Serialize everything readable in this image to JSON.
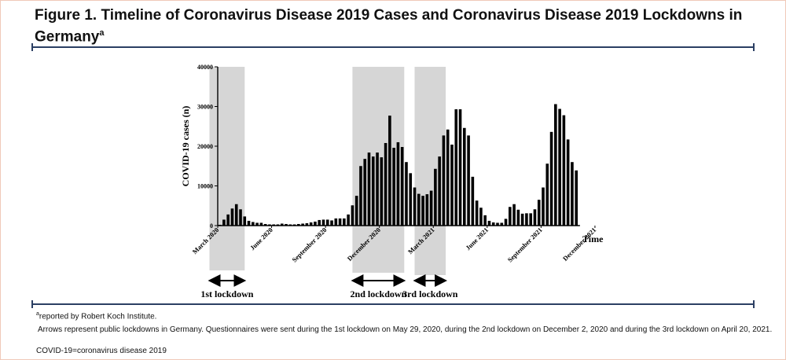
{
  "figure": {
    "title_main": "Figure 1. Timeline of Coronavirus Disease 2019 Cases and Coronavirus Disease 2019 Lockdowns in Germany",
    "title_sup": "a"
  },
  "chart_data": {
    "type": "bar",
    "ylabel": "COVID-19 cases  (n)",
    "xlabel": "Time",
    "ylim": [
      0,
      40000
    ],
    "yticks": [
      0,
      10000,
      20000,
      30000,
      40000
    ],
    "xtick_labels": [
      {
        "label": "March 2020",
        "index": 0
      },
      {
        "label": "June 2020",
        "index": 13
      },
      {
        "label": "September 2020",
        "index": 26
      },
      {
        "label": "December 2020",
        "index": 39
      },
      {
        "label": "March 2021",
        "index": 52
      },
      {
        "label": "June 2021",
        "index": 65
      },
      {
        "label": "September 2021",
        "index": 78
      },
      {
        "label": "December 2021",
        "index": 91
      }
    ],
    "values": [
      200,
      1500,
      2800,
      4300,
      5400,
      4100,
      2300,
      1200,
      900,
      700,
      700,
      400,
      300,
      300,
      300,
      500,
      400,
      300,
      300,
      400,
      500,
      600,
      800,
      1000,
      1400,
      1500,
      1500,
      1300,
      1800,
      1800,
      1800,
      2800,
      5100,
      7500,
      15000,
      16800,
      18400,
      17400,
      18400,
      17200,
      20800,
      27700,
      19600,
      21000,
      19800,
      16000,
      13200,
      9600,
      8000,
      7500,
      7900,
      8800,
      14300,
      17400,
      22700,
      24200,
      20400,
      29300,
      29300,
      24600,
      22700,
      12300,
      6300,
      4500,
      2600,
      1200,
      800,
      700,
      700,
      1700,
      4700,
      5400,
      4000,
      3000,
      3100,
      3100,
      4100,
      6500,
      9600,
      15600,
      23600,
      30600,
      29400,
      27800,
      21700,
      16000,
      13900
    ],
    "lockdowns": [
      {
        "label": "1st lockdown",
        "start_index": -2,
        "end_index": 6.5
      },
      {
        "label": "2nd lockdown",
        "start_index": 32.5,
        "end_index": 45
      },
      {
        "label": "3rd lockdown",
        "start_index": 47.5,
        "end_index": 55
      }
    ],
    "bar_color": "#000000",
    "shade_color": "#d6d6d6"
  },
  "footnotes": {
    "note_a_sup": "a",
    "note_a_text": "reported by Robert Koch Institute.",
    "note_arrows": "Arrows represent public lockdowns in Germany. Questionnaires were sent during the 1st lockdown on May 29, 2020, during the 2nd lockdown on December 2, 2020 and during the 3rd lockdown on April 20, 2021.",
    "note_abbrev": "COVID-19=coronavirus disease 2019"
  }
}
